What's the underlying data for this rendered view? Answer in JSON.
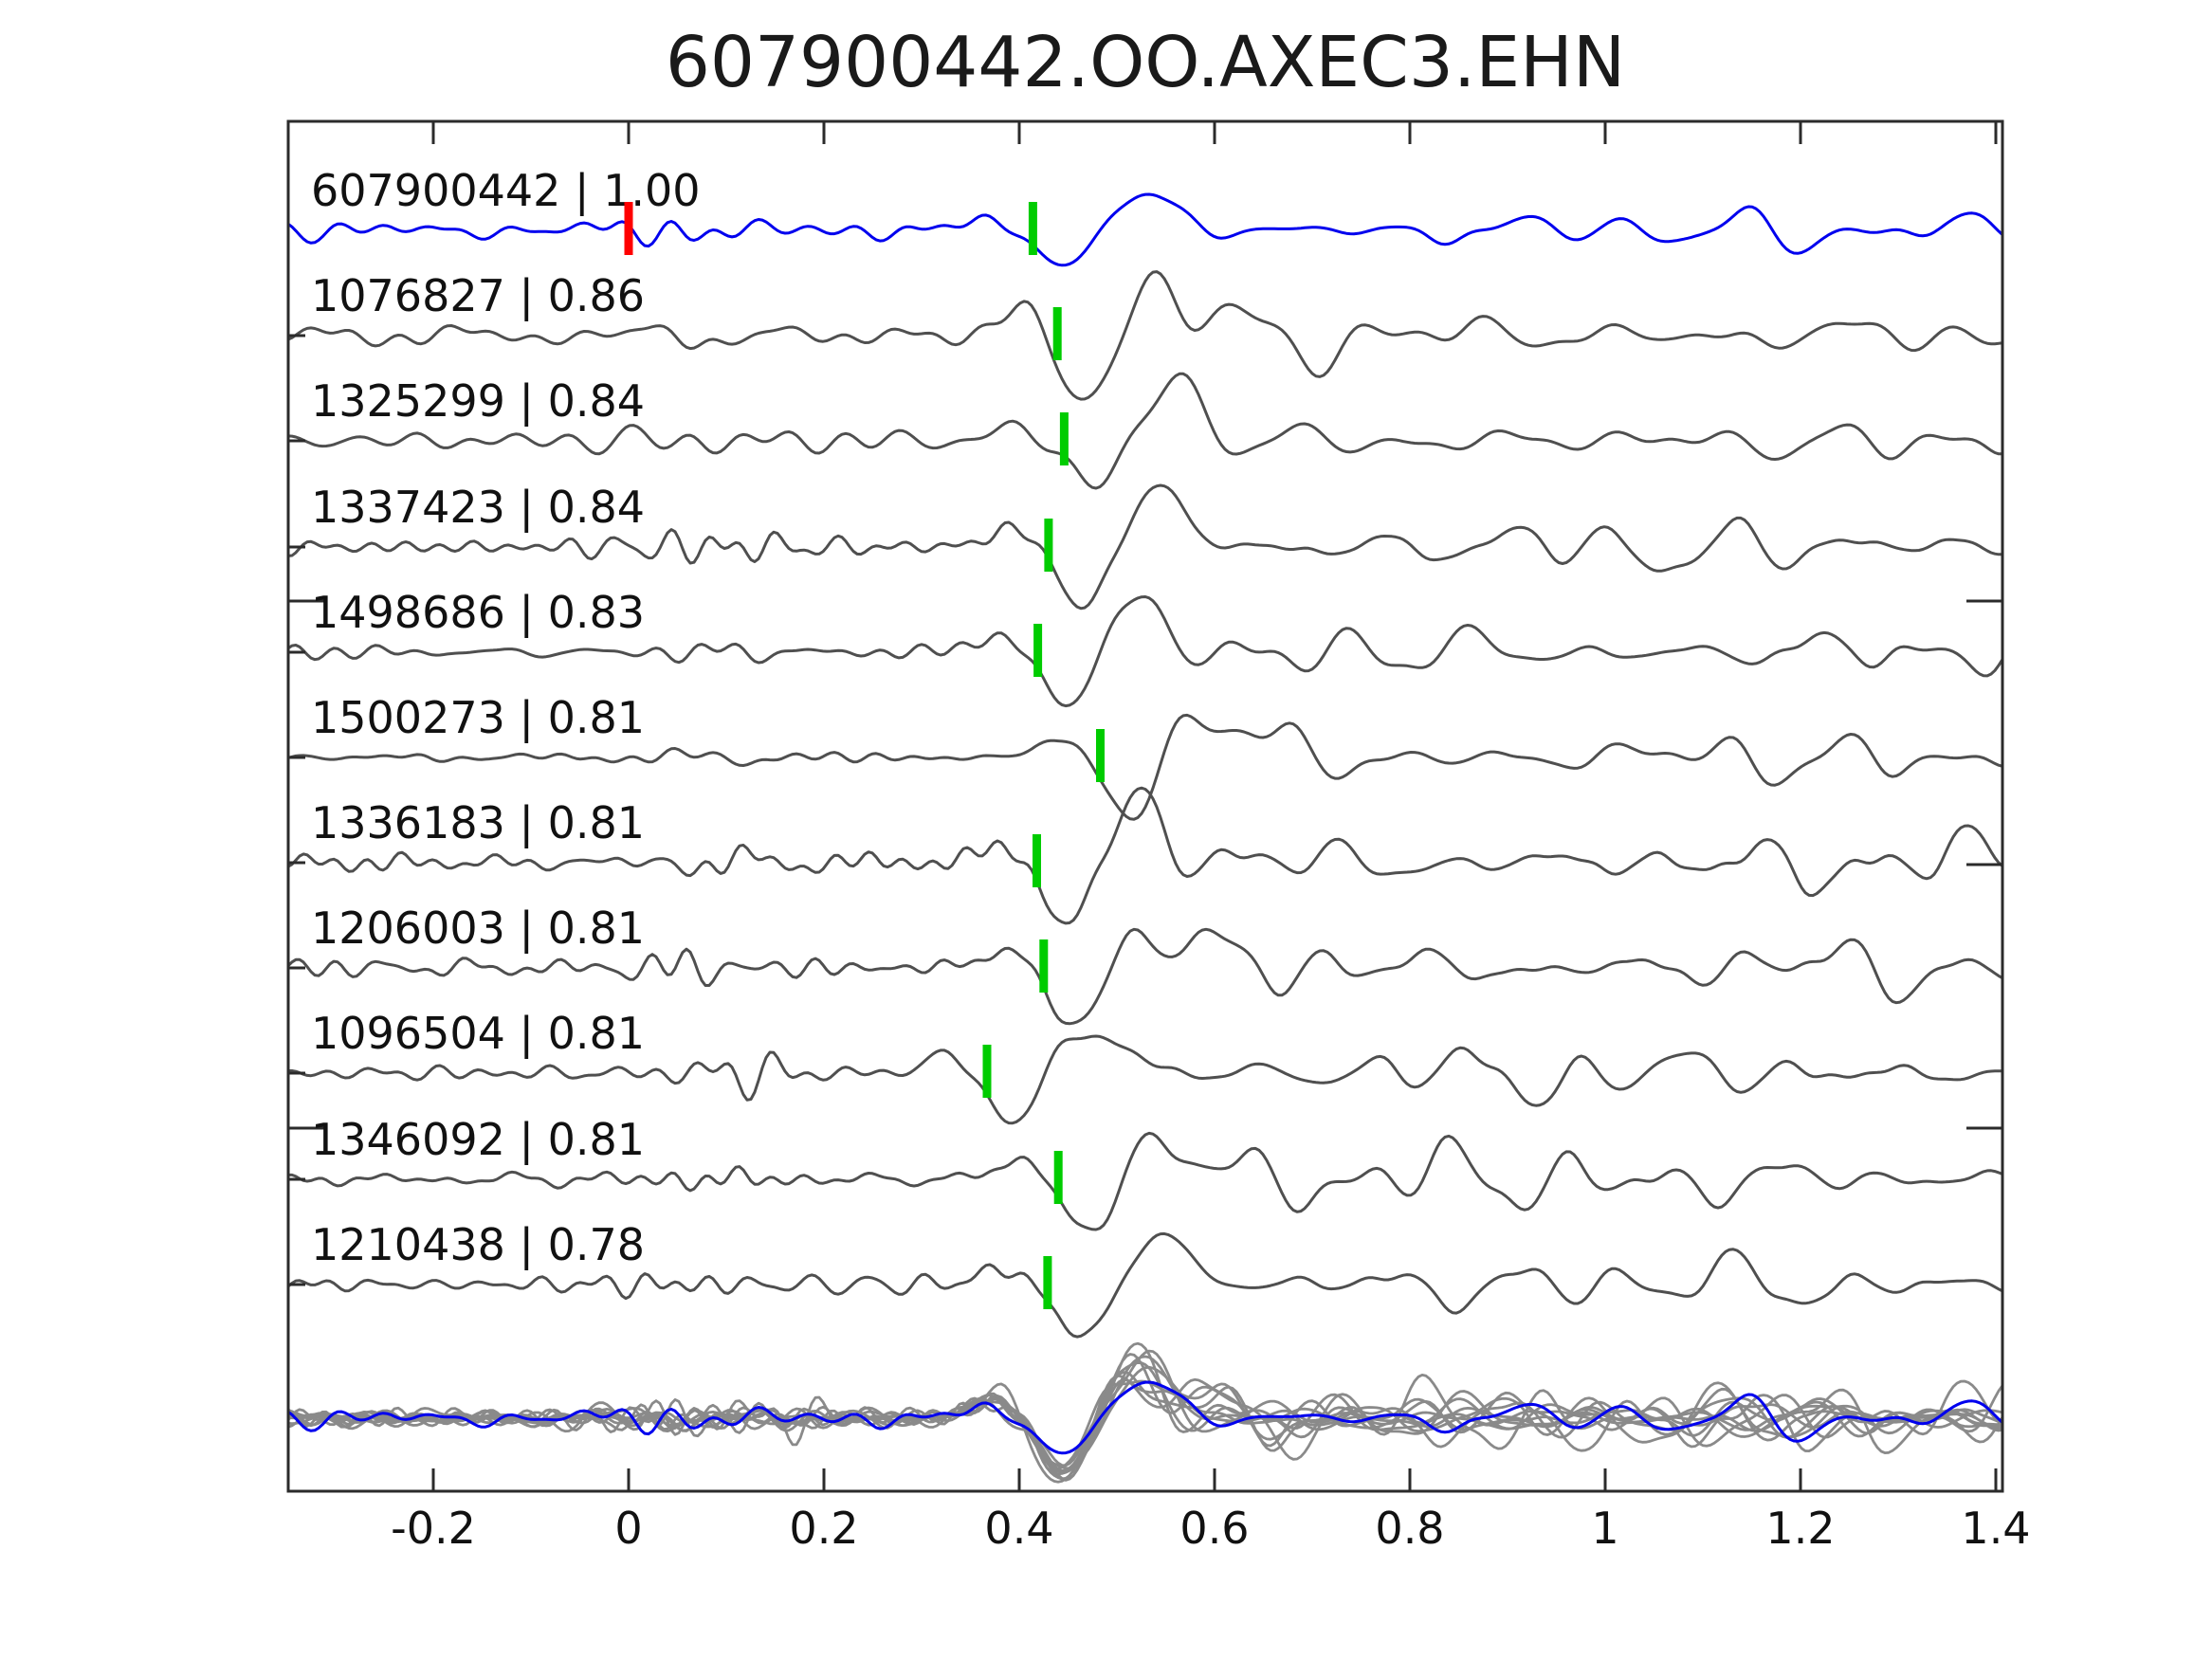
{
  "title": "607900442.OO.AXEC3.EHN",
  "colors": {
    "background": "#ffffff",
    "template_trace": "#0000ee",
    "matched_trace": "#4f4f4f",
    "overlay_trace": "#8a8a8a",
    "pick_marker": "#00cc00",
    "reference_marker": "#ff0000",
    "frame": "#2b2b2b",
    "text": "#1a1a1a"
  },
  "chart_data": {
    "type": "line",
    "title": "607900442.OO.AXEC3.EHN",
    "xlabel": "",
    "ylabel": "",
    "x_range": [
      -0.35,
      1.41
    ],
    "xticks": [
      -0.2,
      0,
      0.2,
      0.4,
      0.6,
      0.8,
      1,
      1.2,
      1.4
    ],
    "xtick_labels": [
      "-0.2",
      "0",
      "0.2",
      "0.4",
      "0.6",
      "0.8",
      "1",
      "1.2",
      "1.4"
    ],
    "grid": false,
    "legend": false,
    "description": "Stacked seismic waveform cross-correlation view: template event on top (blue) with red reference marker at t=0, ten matched detections below (gray) with green pick markers, and all traces overlaid at the bottom.",
    "traces": [
      {
        "id": "607900442",
        "cc": "1.00",
        "label": "607900442 | 1.00",
        "role": "template",
        "pick_time": 0.414,
        "ref_time": 0.0,
        "seed": 42,
        "noise_amp": 10,
        "coda_amp": 33
      },
      {
        "id": "1076827",
        "cc": "0.86",
        "label": "1076827 | 0.86",
        "role": "match",
        "pick_time": 0.439,
        "seed": 101,
        "noise_amp": 12,
        "coda_amp": 48
      },
      {
        "id": "1325299",
        "cc": "0.84",
        "label": "1325299 | 0.84",
        "role": "match",
        "pick_time": 0.446,
        "seed": 202,
        "noise_amp": 11,
        "coda_amp": 46
      },
      {
        "id": "1337423",
        "cc": "0.84",
        "label": "1337423 | 0.84",
        "role": "match",
        "pick_time": 0.43,
        "seed": 303,
        "noise_amp": 12,
        "coda_amp": 47
      },
      {
        "id": "1498686",
        "cc": "0.83",
        "label": "1498686 | 0.83",
        "role": "match",
        "pick_time": 0.419,
        "seed": 404,
        "noise_amp": 10,
        "coda_amp": 44
      },
      {
        "id": "1500273",
        "cc": "0.81",
        "label": "1500273 | 0.81",
        "role": "match",
        "pick_time": 0.483,
        "seed": 505,
        "noise_amp": 7,
        "coda_amp": 42
      },
      {
        "id": "1336183",
        "cc": "0.81",
        "label": "1336183 | 0.81",
        "role": "match",
        "pick_time": 0.418,
        "seed": 606,
        "noise_amp": 11,
        "coda_amp": 46
      },
      {
        "id": "1206003",
        "cc": "0.81",
        "label": "1206003 | 0.81",
        "role": "match",
        "pick_time": 0.425,
        "seed": 707,
        "noise_amp": 12,
        "coda_amp": 45
      },
      {
        "id": "1096504",
        "cc": "0.81",
        "label": "1096504 | 0.81",
        "role": "match",
        "pick_time": 0.367,
        "seed": 808,
        "noise_amp": 12,
        "coda_amp": 47
      },
      {
        "id": "1346092",
        "cc": "0.81",
        "label": "1346092 | 0.81",
        "role": "match",
        "pick_time": 0.44,
        "seed": 909,
        "noise_amp": 11,
        "coda_amp": 48
      },
      {
        "id": "1210438",
        "cc": "0.78",
        "label": "1210438 | 0.78",
        "role": "match",
        "pick_time": 0.429,
        "seed": 111,
        "noise_amp": 12,
        "coda_amp": 46
      }
    ],
    "overlay": {
      "contains": "all traces aligned on pick, template highlighted",
      "gray_color": "#8a8a8a",
      "highlight_color": "#0000ee"
    }
  }
}
